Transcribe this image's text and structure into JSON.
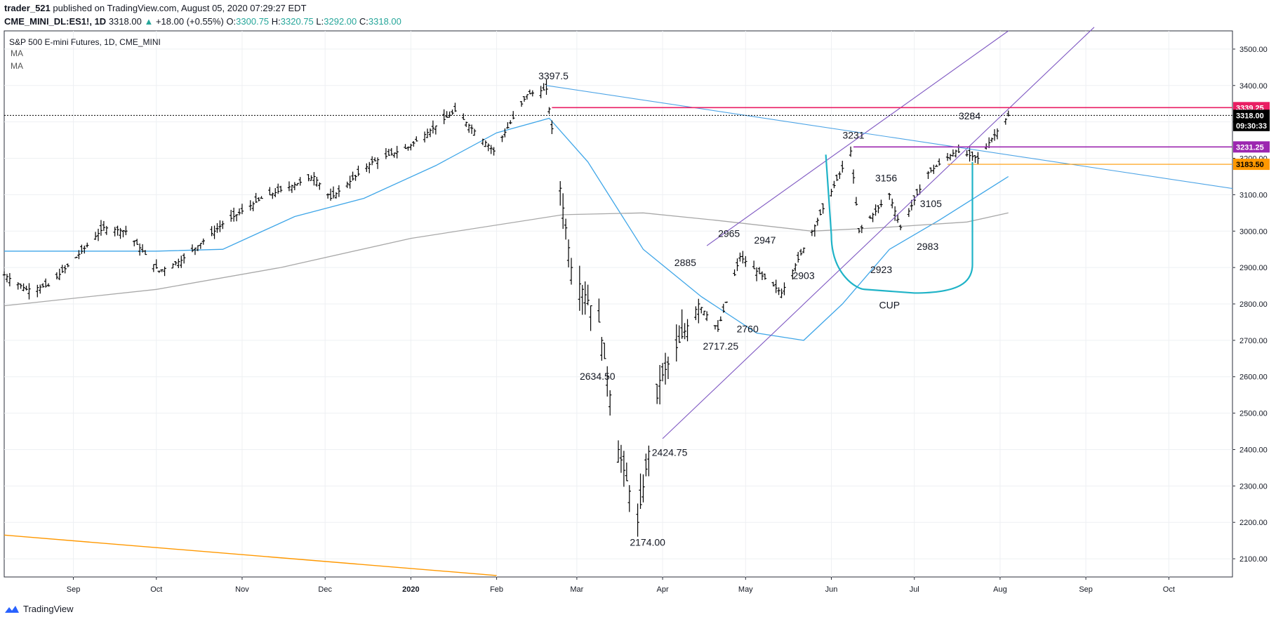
{
  "header": {
    "user": "trader_521",
    "published": " published on TradingView.com, August 05, 2020 07:29:27 EDT",
    "symbol": "CME_MINI_DL:ES1!, 1D",
    "last": "3318.00",
    "change_arrow": "▲",
    "change": "+18.00 (+0.55%)",
    "o_label": "O:",
    "o": "3300.75",
    "h_label": "H:",
    "h": "3320.75",
    "l_label": "L:",
    "l": "3292.00",
    "c_label": "C:",
    "c": "3318.00"
  },
  "footer": {
    "brand": "TradingView",
    "logo_icon": "tradingview-logo-icon"
  },
  "colors": {
    "ma50": "#3fa6e8",
    "ma200": "#a8a8a8",
    "channel": "#7e57c2",
    "trendline": "#4da4e6",
    "resistance": "#e91e63",
    "support_purple": "#9c27b0",
    "support_orange": "#ff9800",
    "cup": "#1fb3c7",
    "long_trend": "#ff9800",
    "bars": "#000000",
    "grid": "#eef0f3"
  },
  "chart_data": {
    "type": "bar",
    "title": "S&P 500 E-mini Futures, 1D, CME_MINI",
    "indicators": [
      "MA",
      "MA"
    ],
    "y_axis_side": "right",
    "ylim": [
      2050,
      3550
    ],
    "y_ticks": [
      "3500.00",
      "3400.00",
      "3300.00",
      "3200.00",
      "3100.00",
      "3000.00",
      "2900.00",
      "2800.00",
      "2700.00",
      "2600.00",
      "2500.00",
      "2400.00",
      "2300.00",
      "2200.00",
      "2100.00"
    ],
    "x_tick_labels": [
      "Sep",
      "Oct",
      "Nov",
      "Dec",
      "2020",
      "Feb",
      "Mar",
      "Apr",
      "May",
      "Jun",
      "Jul",
      "Aug",
      "Sep",
      "Oct"
    ],
    "x_tick_dates": [
      "2019-09-01",
      "2019-10-01",
      "2019-11-01",
      "2019-12-01",
      "2020-01-01",
      "2020-02-01",
      "2020-03-01",
      "2020-04-01",
      "2020-05-01",
      "2020-06-01",
      "2020-07-01",
      "2020-08-01",
      "2020-09-01",
      "2020-10-01"
    ],
    "xlim": [
      "2019-08-07",
      "2020-10-24"
    ],
    "series_close_path": [
      [
        "2019-08-07",
        2880
      ],
      [
        "2019-08-15",
        2840
      ],
      [
        "2019-08-23",
        2850
      ],
      [
        "2019-09-01",
        2920
      ],
      [
        "2019-09-12",
        3010
      ],
      [
        "2019-09-20",
        3000
      ],
      [
        "2019-10-02",
        2890
      ],
      [
        "2019-10-10",
        2920
      ],
      [
        "2019-10-25",
        3020
      ],
      [
        "2019-11-08",
        3090
      ],
      [
        "2019-11-27",
        3150
      ],
      [
        "2019-12-03",
        3090
      ],
      [
        "2019-12-18",
        3190
      ],
      [
        "2019-12-31",
        3230
      ],
      [
        "2020-01-17",
        3330
      ],
      [
        "2020-01-31",
        3220
      ],
      [
        "2020-02-12",
        3375
      ],
      [
        "2020-02-19",
        3390
      ],
      [
        "2020-02-28",
        2900
      ],
      [
        "2020-03-09",
        2750
      ],
      [
        "2020-03-16",
        2400
      ],
      [
        "2020-03-23",
        2200
      ],
      [
        "2020-03-31",
        2590
      ],
      [
        "2020-04-14",
        2800
      ],
      [
        "2020-04-21",
        2730
      ],
      [
        "2020-04-29",
        2930
      ],
      [
        "2020-05-14",
        2830
      ],
      [
        "2020-05-27",
        3030
      ],
      [
        "2020-06-08",
        3220
      ],
      [
        "2020-06-11",
        3000
      ],
      [
        "2020-06-22",
        3100
      ],
      [
        "2020-06-26",
        3010
      ],
      [
        "2020-07-06",
        3160
      ],
      [
        "2020-07-16",
        3220
      ],
      [
        "2020-07-24",
        3200
      ],
      [
        "2020-08-04",
        3318
      ]
    ],
    "moving_averages": [
      {
        "name": "MA",
        "period": "50",
        "points": [
          [
            "2019-08-07",
            2945
          ],
          [
            "2019-09-01",
            2945
          ],
          [
            "2019-10-01",
            2945
          ],
          [
            "2019-10-25",
            2950
          ],
          [
            "2019-11-20",
            3040
          ],
          [
            "2019-12-15",
            3090
          ],
          [
            "2020-01-10",
            3180
          ],
          [
            "2020-02-01",
            3270
          ],
          [
            "2020-02-20",
            3310
          ],
          [
            "2020-03-05",
            3190
          ],
          [
            "2020-03-25",
            2950
          ],
          [
            "2020-04-15",
            2820
          ],
          [
            "2020-05-05",
            2720
          ],
          [
            "2020-05-22",
            2700
          ],
          [
            "2020-06-05",
            2800
          ],
          [
            "2020-06-22",
            2950
          ],
          [
            "2020-07-10",
            3030
          ],
          [
            "2020-08-04",
            3150
          ]
        ]
      },
      {
        "name": "MA",
        "period": "200",
        "points": [
          [
            "2019-08-07",
            2795
          ],
          [
            "2019-10-01",
            2840
          ],
          [
            "2019-11-15",
            2900
          ],
          [
            "2020-01-01",
            2980
          ],
          [
            "2020-02-25",
            3045
          ],
          [
            "2020-03-25",
            3050
          ],
          [
            "2020-04-20",
            3030
          ],
          [
            "2020-05-25",
            3000
          ],
          [
            "2020-06-20",
            3010
          ],
          [
            "2020-07-20",
            3025
          ],
          [
            "2020-08-04",
            3050
          ]
        ]
      }
    ],
    "drawings": [
      {
        "kind": "line",
        "name": "upper-channel",
        "from": [
          "2020-04-17",
          2960
        ],
        "to": [
          "2020-08-04",
          3550
        ]
      },
      {
        "kind": "line",
        "name": "lower-channel",
        "from": [
          "2020-04-01",
          2430
        ],
        "to": [
          "2020-09-04",
          3560
        ]
      },
      {
        "kind": "line",
        "name": "descending-trendline",
        "from": [
          "2020-02-19",
          3400
        ],
        "to": [
          "2020-10-24",
          3117
        ]
      },
      {
        "kind": "line",
        "name": "long-orange-trendline",
        "from": [
          "2019-08-07",
          2165
        ],
        "to": [
          "2020-02-01",
          2054
        ]
      },
      {
        "kind": "hline",
        "name": "resistance-3339",
        "y": 3339.25,
        "from": "2020-02-21"
      },
      {
        "kind": "hline",
        "name": "support-3231",
        "y": 3231.25,
        "from": "2020-06-09"
      },
      {
        "kind": "hline",
        "name": "support-3183",
        "y": 3183.5,
        "from": "2020-07-13"
      },
      {
        "kind": "hline",
        "name": "last-price-dotted",
        "y": 3318,
        "from": "2019-08-07"
      }
    ],
    "cup": {
      "label": "CUP",
      "points": [
        [
          "2020-05-30",
          3210
        ],
        [
          "2020-06-01",
          2990
        ],
        [
          "2020-06-13",
          2840
        ],
        [
          "2020-07-01",
          2830
        ],
        [
          "2020-07-20",
          2870
        ],
        [
          "2020-07-22",
          3190
        ]
      ]
    },
    "annotations": [
      {
        "text": "3397.5",
        "x": "2020-02-19",
        "y": 3397.5
      },
      {
        "text": "3231",
        "x": "2020-06-09",
        "y": 3231
      },
      {
        "text": "3284",
        "x": "2020-07-21",
        "y": 3284
      },
      {
        "text": "3156",
        "x": "2020-06-17",
        "y": 3156
      },
      {
        "text": "2965",
        "x": "2020-04-25",
        "y": 2965
      },
      {
        "text": "2947",
        "x": "2020-05-08",
        "y": 2947
      },
      {
        "text": "2885",
        "x": "2020-04-13",
        "y": 2885
      },
      {
        "text": "2903",
        "x": "2020-05-22",
        "y": 2903
      },
      {
        "text": "3105",
        "x": "2020-07-07",
        "y": 3105
      },
      {
        "text": "2983",
        "x": "2020-07-02",
        "y": 2983
      },
      {
        "text": "2923",
        "x": "2020-06-17",
        "y": 2923
      },
      {
        "text": "2760",
        "x": "2020-05-03",
        "y": 2760
      },
      {
        "text": "2717.25",
        "x": "2020-04-22",
        "y": 2717.25
      },
      {
        "text": "2634.50",
        "x": "2020-03-11",
        "y": 2634.5
      },
      {
        "text": "2424.75",
        "x": "2020-04-01",
        "y": 2424.75
      },
      {
        "text": "2174.00",
        "x": "2020-03-22",
        "y": 2174
      }
    ],
    "price_labels": [
      {
        "text": "3339.25",
        "y": 3339.25,
        "bg": "#e91e63",
        "fg": "#ffffff"
      },
      {
        "text": "3318.00",
        "y": 3318,
        "bg": "#000000",
        "fg": "#ffffff"
      },
      {
        "text": "09:30:33",
        "y": 3290,
        "bg": "#000000",
        "fg": "#ffffff"
      },
      {
        "text": "3231.25",
        "y": 3231.25,
        "bg": "#9c27b0",
        "fg": "#ffffff"
      },
      {
        "text": "3183.50",
        "y": 3183.5,
        "bg": "#ff9800",
        "fg": "#000000"
      }
    ]
  }
}
